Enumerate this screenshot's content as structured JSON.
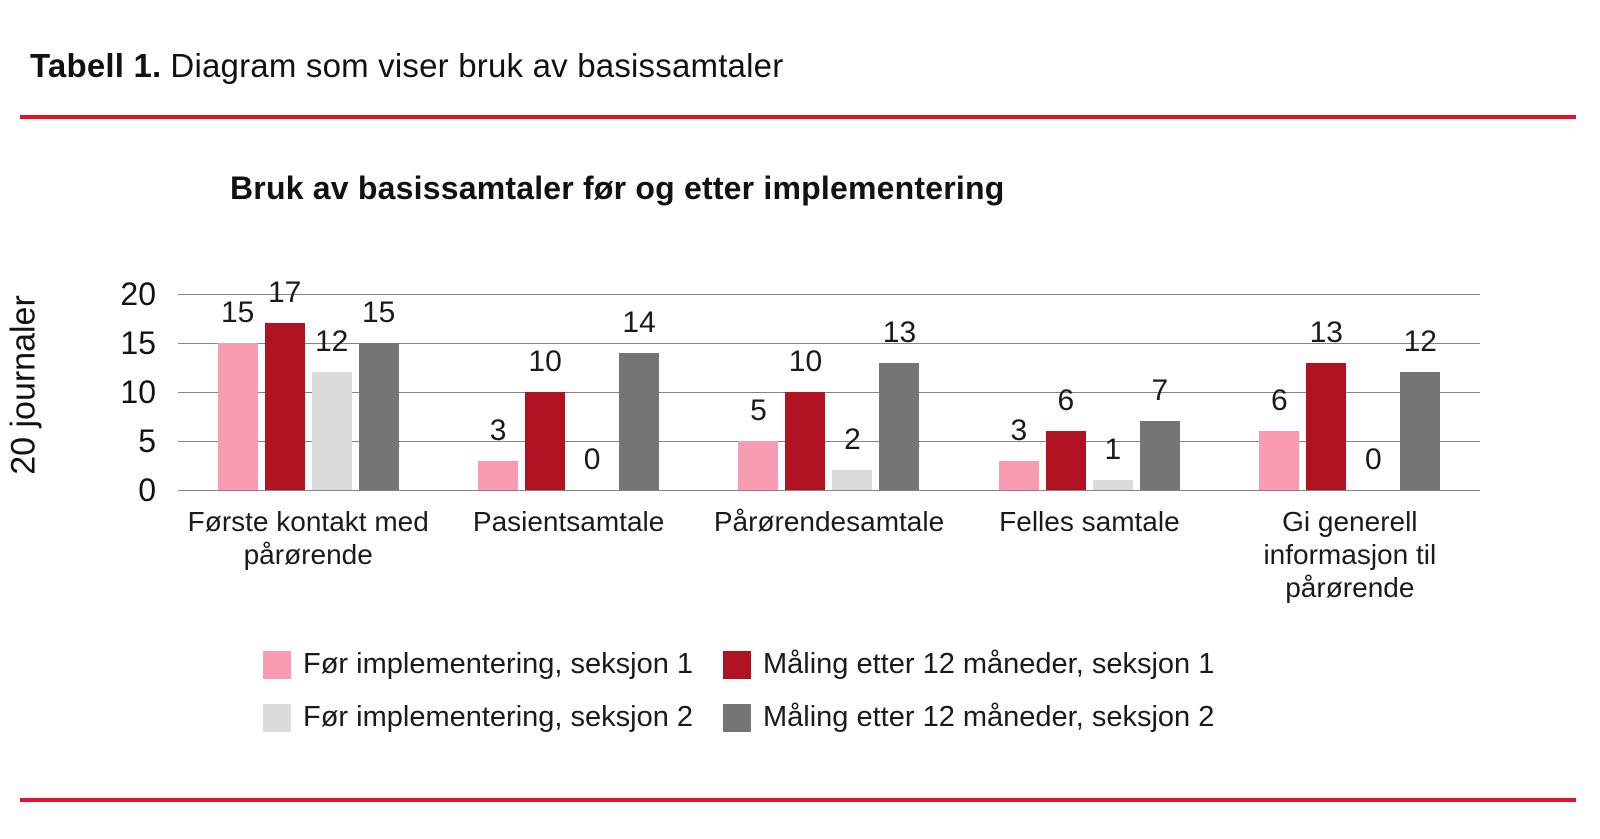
{
  "page": {
    "heading_bold": "Tabell 1.",
    "heading_text": "Diagram som viser bruk av basissamtaler",
    "rule_color": "#e8112d"
  },
  "chart_data": {
    "type": "bar",
    "title": "Bruk av basissamtaler før og etter implementering",
    "ylabel": "20 journaler",
    "xlabel": "",
    "ylim": [
      0,
      20
    ],
    "yticks": [
      0,
      5,
      10,
      15,
      20
    ],
    "grid": true,
    "legend_position": "bottom",
    "bar_labels_shown": true,
    "categories": [
      "Første kontakt med\npårørende",
      "Pasientsamtale",
      "Pårørendesamtale",
      "Felles samtale",
      "Gi generell\ninformasjon til\npårørende"
    ],
    "series": [
      {
        "name": "Før implementering, seksjon 1",
        "color": "#f99bb2",
        "values": [
          15,
          3,
          5,
          3,
          6
        ]
      },
      {
        "name": "Måling etter 12 måneder, seksjon 1",
        "color": "#b11222",
        "values": [
          17,
          10,
          10,
          6,
          13
        ]
      },
      {
        "name": "Før implementering, seksjon 2",
        "color": "#dbdbdb",
        "values": [
          12,
          0,
          2,
          1,
          0
        ]
      },
      {
        "name": "Måling etter 12 måneder, seksjon 2",
        "color": "#757575",
        "values": [
          15,
          14,
          13,
          7,
          12
        ]
      }
    ]
  }
}
